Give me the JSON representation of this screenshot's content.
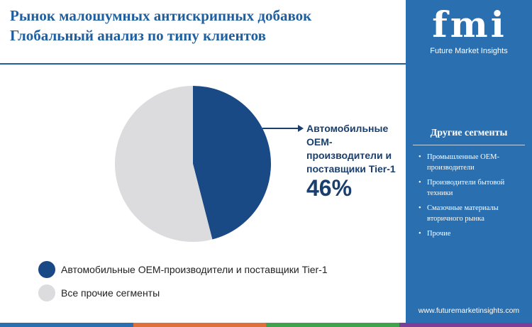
{
  "header": {
    "title_line1": "Рынок малошумных антискрипных добавок",
    "title_line2": "Глобальный анализ по типу клиентов"
  },
  "logo": {
    "mark": "fmi",
    "name": "Future Market Insights"
  },
  "sidebar": {
    "title": "Другие сегменты",
    "items": [
      "Промышленные OEM-производители",
      "Производители бытовой техники",
      "Смазочные материалы вторичного рынка",
      "Прочие"
    ],
    "url": "www.futuremarketinsights.com"
  },
  "callout": {
    "label": "Автомобильные OEM-производители и поставщики Tier-1",
    "value": "46%"
  },
  "colors": {
    "primary": "#1a4a86",
    "other": "#dcdcde",
    "accent": "#1f5f9f",
    "sidebar": "#2a6fb0",
    "bottom_bar": [
      "#2a6fb0",
      "#e0703a",
      "#3ea34b",
      "#7a3f98"
    ]
  },
  "chart_data": {
    "type": "pie",
    "title": "",
    "slices": [
      {
        "label": "Автомобильные OEM-производители и поставщики Tier-1",
        "value": 46,
        "color": "#1a4a86"
      },
      {
        "label": "Все прочие сегменты",
        "value": 54,
        "color": "#dcdcde"
      }
    ],
    "legend_position": "bottom-left"
  }
}
